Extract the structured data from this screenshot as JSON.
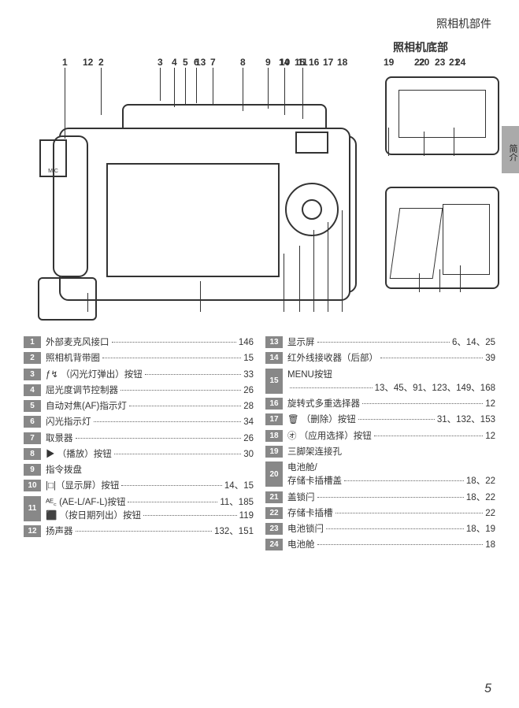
{
  "header_section": "照相机部件",
  "side_tab": "简介",
  "bottom_label": "照相机底部",
  "page_number": "5",
  "diagram_top_nums": [
    "1",
    "2",
    "3",
    "4",
    "5",
    "6",
    "7",
    "8",
    "9",
    "10",
    "11"
  ],
  "diagram_bottom_nums": [
    "12",
    "13",
    "14",
    "15",
    "16",
    "17",
    "18"
  ],
  "sub1_nums": [
    "19",
    "20",
    "21"
  ],
  "sub2_nums": [
    "22",
    "23",
    "24"
  ],
  "mic_text": "MIC",
  "left_list": [
    {
      "n": "1",
      "lines": [
        {
          "label": "外部麦克风接口",
          "pages": "146"
        }
      ]
    },
    {
      "n": "2",
      "lines": [
        {
          "label": "照相机背带圈",
          "pages": "15"
        }
      ]
    },
    {
      "n": "3",
      "lines": [
        {
          "label": "ƒ↯ （闪光灯弹出）按钮",
          "pages": "33"
        }
      ]
    },
    {
      "n": "4",
      "lines": [
        {
          "label": "屈光度调节控制器",
          "pages": "26"
        }
      ]
    },
    {
      "n": "5",
      "lines": [
        {
          "label": "自动对焦(AF)指示灯",
          "pages": "28"
        }
      ]
    },
    {
      "n": "6",
      "lines": [
        {
          "label": "闪光指示灯",
          "pages": "34"
        }
      ]
    },
    {
      "n": "7",
      "lines": [
        {
          "label": "取景器",
          "pages": "26"
        }
      ]
    },
    {
      "n": "8",
      "lines": [
        {
          "label": "▶ （播放）按钮",
          "icon": "play",
          "pages": "30"
        }
      ]
    },
    {
      "n": "9",
      "lines": [
        {
          "label": "指令拨盘",
          "pages": ""
        }
      ]
    },
    {
      "n": "10",
      "lines": [
        {
          "label": "|□|（显示屏）按钮",
          "pages": "14、15"
        }
      ]
    },
    {
      "n": "11",
      "tall": true,
      "lines": [
        {
          "label": "ᴬᴱ꜀ (AE-L/AF-L)按钮",
          "pages": "11、185"
        },
        {
          "label": "⬛ （按日期列出）按钮",
          "pages": "119"
        }
      ]
    },
    {
      "n": "12",
      "lines": [
        {
          "label": "扬声器",
          "pages": "132、151"
        }
      ]
    }
  ],
  "right_list": [
    {
      "n": "13",
      "lines": [
        {
          "label": "显示屏",
          "pages": "6、14、25"
        }
      ]
    },
    {
      "n": "14",
      "lines": [
        {
          "label": "红外线接收器（后部）",
          "pages": "39"
        }
      ]
    },
    {
      "n": "15",
      "tall": true,
      "lines": [
        {
          "label": "MENU按钮",
          "pages": ""
        },
        {
          "label": "",
          "pages": "13、45、91、123、149、168"
        }
      ]
    },
    {
      "n": "16",
      "lines": [
        {
          "label": "旋转式多重选择器",
          "pages": "12"
        }
      ]
    },
    {
      "n": "17",
      "lines": [
        {
          "label": "🗑 （删除）按钮",
          "pages": "31、132、153"
        }
      ]
    },
    {
      "n": "18",
      "lines": [
        {
          "label": "㋔ （应用选择）按钮",
          "pages": "12"
        }
      ]
    },
    {
      "n": "19",
      "lines": [
        {
          "label": "三脚架连接孔",
          "pages": ""
        }
      ]
    },
    {
      "n": "20",
      "tall": true,
      "lines": [
        {
          "label": "电池舱/",
          "pages": ""
        },
        {
          "label": "存储卡插槽盖",
          "pages": "18、22"
        }
      ]
    },
    {
      "n": "21",
      "lines": [
        {
          "label": "盖锁闩",
          "pages": "18、22"
        }
      ]
    },
    {
      "n": "22",
      "lines": [
        {
          "label": "存储卡插槽",
          "pages": "22"
        }
      ]
    },
    {
      "n": "23",
      "lines": [
        {
          "label": "电池锁闩",
          "pages": "18、19"
        }
      ]
    },
    {
      "n": "24",
      "lines": [
        {
          "label": "电池舱",
          "pages": "18"
        }
      ]
    }
  ]
}
